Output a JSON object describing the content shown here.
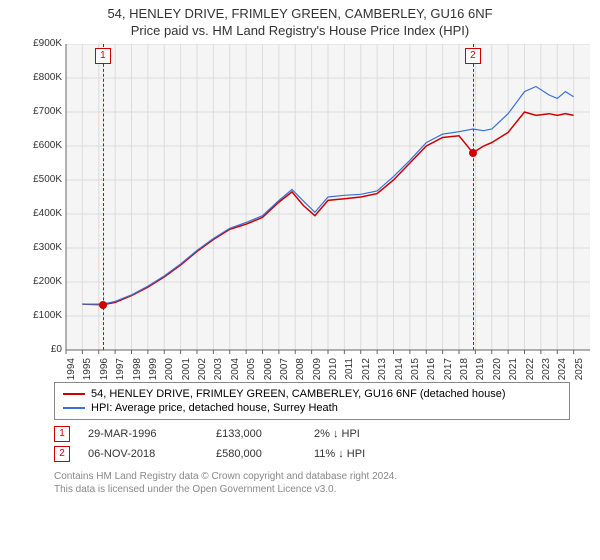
{
  "title": "54, HENLEY DRIVE, FRIMLEY GREEN, CAMBERLEY, GU16 6NF",
  "subtitle": "Price paid vs. HM Land Registry's House Price Index (HPI)",
  "chart": {
    "type": "line",
    "background_color": "#f5f5f5",
    "grid_color": "#dcdcdc",
    "axis_color": "#666666",
    "tick_color": "#666666",
    "y": {
      "lim": [
        0,
        900000
      ],
      "ticks": [
        0,
        100000,
        200000,
        300000,
        400000,
        500000,
        600000,
        700000,
        800000,
        900000
      ],
      "labels": [
        "£0",
        "£100K",
        "£200K",
        "£300K",
        "£400K",
        "£500K",
        "£600K",
        "£700K",
        "£800K",
        "£900K"
      ],
      "label_fontsize": 10
    },
    "x": {
      "lim": [
        1994,
        2026
      ],
      "ticks": [
        1994,
        1995,
        1996,
        1997,
        1998,
        1999,
        2000,
        2001,
        2002,
        2003,
        2004,
        2005,
        2006,
        2007,
        2008,
        2009,
        2010,
        2011,
        2012,
        2013,
        2014,
        2015,
        2016,
        2017,
        2018,
        2019,
        2020,
        2021,
        2022,
        2023,
        2024,
        2025
      ],
      "label_fontsize": 10
    },
    "series": [
      {
        "name": "property",
        "color": "#cc0000",
        "width": 1.5,
        "data": [
          [
            1995.0,
            135000
          ],
          [
            1996.25,
            133000
          ],
          [
            1997.0,
            140000
          ],
          [
            1998.0,
            160000
          ],
          [
            1999.0,
            185000
          ],
          [
            2000.0,
            215000
          ],
          [
            2001.0,
            250000
          ],
          [
            2002.0,
            290000
          ],
          [
            2003.0,
            325000
          ],
          [
            2004.0,
            355000
          ],
          [
            2005.0,
            370000
          ],
          [
            2006.0,
            390000
          ],
          [
            2007.0,
            435000
          ],
          [
            2007.8,
            465000
          ],
          [
            2008.5,
            425000
          ],
          [
            2009.2,
            395000
          ],
          [
            2010.0,
            440000
          ],
          [
            2011.0,
            445000
          ],
          [
            2012.0,
            450000
          ],
          [
            2013.0,
            460000
          ],
          [
            2014.0,
            500000
          ],
          [
            2015.0,
            550000
          ],
          [
            2016.0,
            600000
          ],
          [
            2017.0,
            625000
          ],
          [
            2018.0,
            630000
          ],
          [
            2018.85,
            580000
          ],
          [
            2019.5,
            600000
          ],
          [
            2020.0,
            610000
          ],
          [
            2021.0,
            640000
          ],
          [
            2022.0,
            700000
          ],
          [
            2022.7,
            690000
          ],
          [
            2023.5,
            695000
          ],
          [
            2024.0,
            690000
          ],
          [
            2024.5,
            695000
          ],
          [
            2025.0,
            690000
          ]
        ]
      },
      {
        "name": "hpi",
        "color": "#3a6fd8",
        "width": 1.2,
        "data": [
          [
            1995.0,
            135000
          ],
          [
            1996.25,
            135000
          ],
          [
            1997.0,
            143000
          ],
          [
            1998.0,
            162000
          ],
          [
            1999.0,
            188000
          ],
          [
            2000.0,
            218000
          ],
          [
            2001.0,
            253000
          ],
          [
            2002.0,
            293000
          ],
          [
            2003.0,
            328000
          ],
          [
            2004.0,
            358000
          ],
          [
            2005.0,
            375000
          ],
          [
            2006.0,
            395000
          ],
          [
            2007.0,
            440000
          ],
          [
            2007.8,
            472000
          ],
          [
            2008.5,
            438000
          ],
          [
            2009.2,
            405000
          ],
          [
            2010.0,
            450000
          ],
          [
            2011.0,
            455000
          ],
          [
            2012.0,
            458000
          ],
          [
            2013.0,
            468000
          ],
          [
            2014.0,
            510000
          ],
          [
            2015.0,
            558000
          ],
          [
            2016.0,
            610000
          ],
          [
            2017.0,
            635000
          ],
          [
            2018.0,
            642000
          ],
          [
            2018.85,
            650000
          ],
          [
            2019.5,
            645000
          ],
          [
            2020.0,
            650000
          ],
          [
            2021.0,
            695000
          ],
          [
            2022.0,
            760000
          ],
          [
            2022.7,
            775000
          ],
          [
            2023.5,
            750000
          ],
          [
            2024.0,
            740000
          ],
          [
            2024.5,
            760000
          ],
          [
            2025.0,
            745000
          ]
        ]
      }
    ],
    "markers": [
      {
        "num": "1",
        "x": 1996.25,
        "y": 133000
      },
      {
        "num": "2",
        "x": 2018.85,
        "y": 580000
      }
    ]
  },
  "legend": [
    {
      "color": "#cc0000",
      "text": "54, HENLEY DRIVE, FRIMLEY GREEN, CAMBERLEY, GU16 6NF (detached house)"
    },
    {
      "color": "#3a6fd8",
      "text": "HPI: Average price, detached house, Surrey Heath"
    }
  ],
  "events": [
    {
      "num": "1",
      "date": "29-MAR-1996",
      "price": "£133,000",
      "diff": "2% ↓ HPI"
    },
    {
      "num": "2",
      "date": "06-NOV-2018",
      "price": "£580,000",
      "diff": "11% ↓ HPI"
    }
  ],
  "footer1": "Contains HM Land Registry data © Crown copyright and database right 2024.",
  "footer2": "This data is licensed under the Open Government Licence v3.0."
}
